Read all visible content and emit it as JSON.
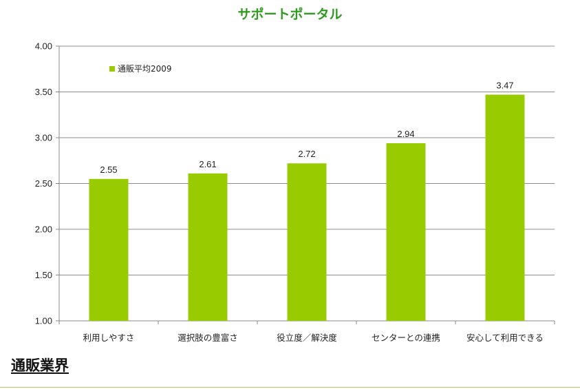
{
  "page": {
    "section_heading": "通販業界"
  },
  "colors": {
    "bar": "#99cc00",
    "title": "#2e9a1e",
    "grid": "#8c8c8c",
    "rule": "#a7cf5a"
  },
  "chart_data": {
    "type": "bar",
    "title": "サポートポータル",
    "xlabel": "",
    "ylabel": "",
    "categories": [
      "利用しやすさ",
      "選択肢の豊富さ",
      "役立度／解決度",
      "センターとの連携",
      "安心して利用できる"
    ],
    "series": [
      {
        "name": "通販平均2009",
        "values": [
          2.55,
          2.61,
          2.72,
          2.94,
          3.47
        ]
      }
    ],
    "ylim": [
      1.0,
      4.0
    ],
    "yticks": [
      "1.00",
      "1.50",
      "2.00",
      "2.50",
      "3.00",
      "3.50",
      "4.00"
    ],
    "data_labels": [
      "2.55",
      "2.61",
      "2.72",
      "2.94",
      "3.47"
    ],
    "grid": true,
    "legend_position": "top-left"
  }
}
